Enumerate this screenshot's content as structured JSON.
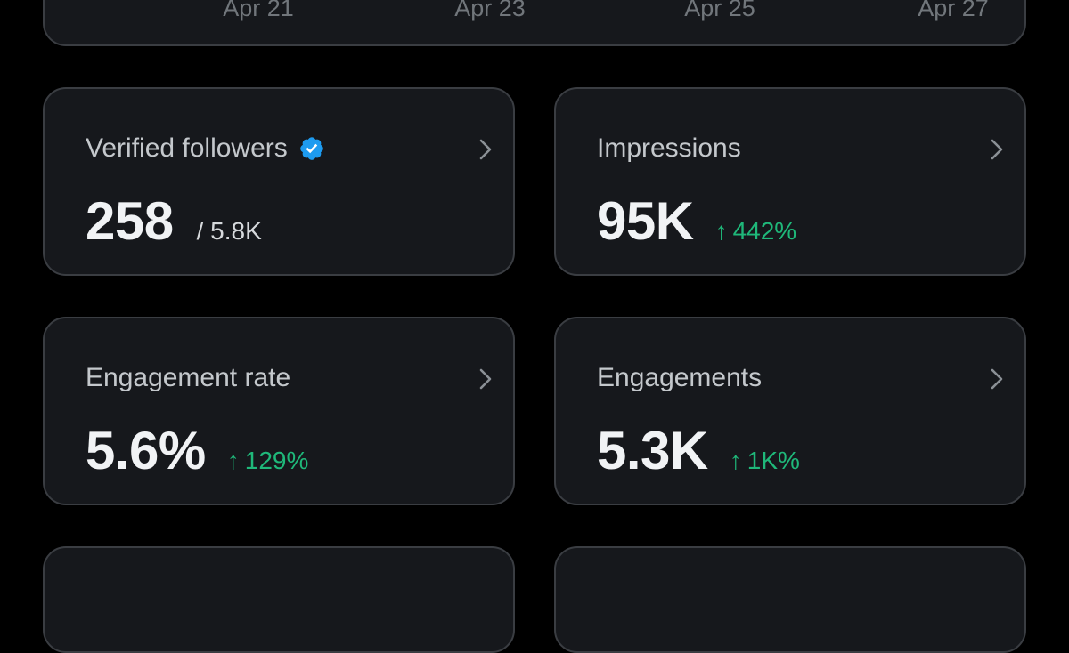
{
  "chart": {
    "x_ticks": [
      "Apr 21",
      "Apr 23",
      "Apr 25",
      "Apr 27"
    ]
  },
  "stats": [
    {
      "title": "Verified followers",
      "value": "258",
      "sub": "/ 5.8K",
      "icon": "verified-badge-icon"
    },
    {
      "title": "Impressions",
      "value": "95K",
      "change": "442%",
      "change_icon": "arrow-up-icon"
    },
    {
      "title": "Engagement rate",
      "value": "5.6%",
      "change": "129%",
      "change_icon": "arrow-up-icon"
    },
    {
      "title": "Engagements",
      "value": "5.3K",
      "change": "1K%",
      "change_icon": "arrow-up-icon"
    }
  ],
  "colors": {
    "background": "#000000",
    "card": "#16181c",
    "card_border": "#3a3d42",
    "positive": "#1fb87a",
    "verified": "#1d9bf0"
  }
}
